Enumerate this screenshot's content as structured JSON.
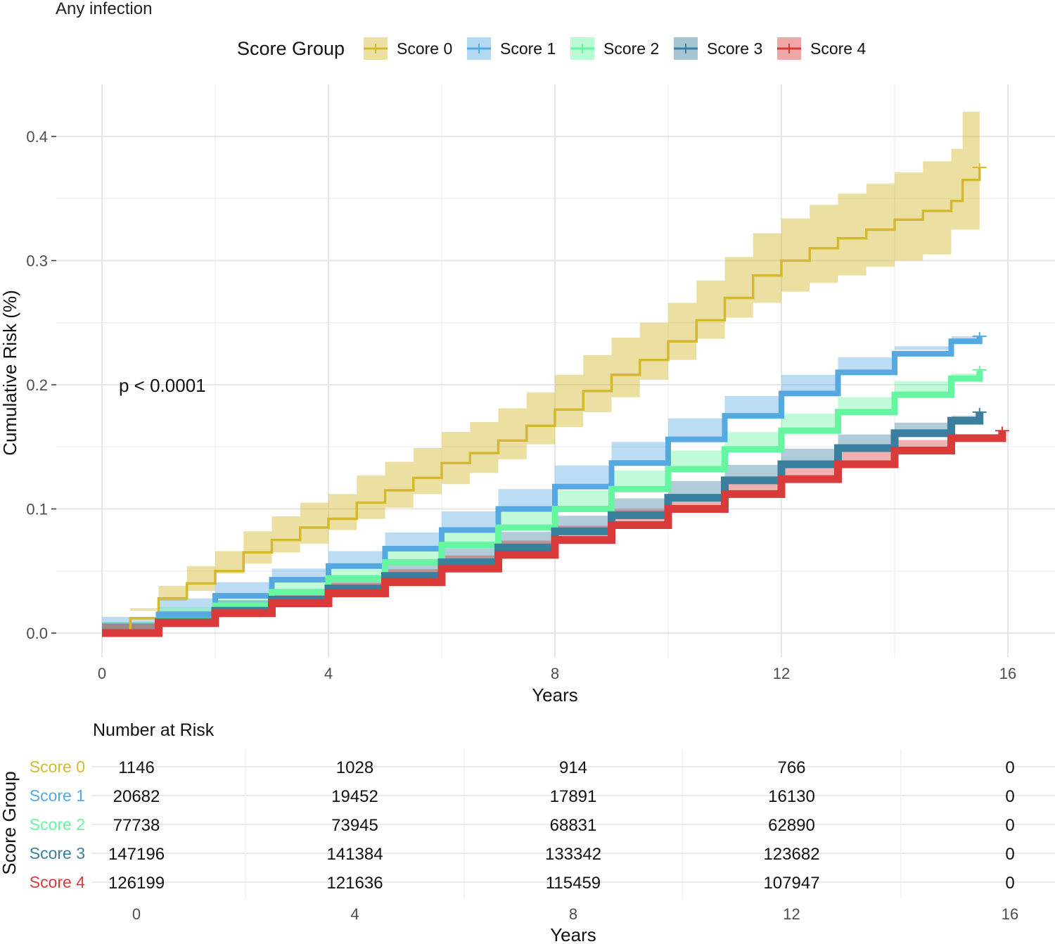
{
  "chart_data": [
    {
      "type": "line",
      "title": "Any infection",
      "xlabel": "Years",
      "ylabel": "Cumulative Risk (%)",
      "xlim": [
        0,
        16
      ],
      "ylim": [
        0,
        0.42
      ],
      "x_ticks": [
        0,
        4,
        8,
        12,
        16
      ],
      "y_ticks": [
        0.0,
        0.1,
        0.2,
        0.3,
        0.4
      ],
      "y_tick_labels": [
        "0.0",
        "0.1",
        "0.2",
        "0.3",
        "0.4"
      ],
      "grid": true,
      "annotation": "p < 0.0001",
      "legend": {
        "title": "Score Group",
        "position": "top",
        "entries": [
          "Score 0",
          "Score 1",
          "Score 2",
          "Score 3",
          "Score 4"
        ]
      },
      "series": [
        {
          "name": "Score 0",
          "color": "#D4B830",
          "x": [
            0,
            0.5,
            1,
            1.5,
            2,
            2.5,
            3,
            3.5,
            4,
            4.5,
            5,
            5.5,
            6,
            6.5,
            7,
            7.5,
            8,
            8.5,
            9,
            9.5,
            10,
            10.5,
            11,
            11.5,
            12,
            12.5,
            13,
            13.5,
            14,
            14.5,
            15,
            15.2,
            15.5
          ],
          "y": [
            0,
            0.012,
            0.028,
            0.04,
            0.05,
            0.065,
            0.075,
            0.085,
            0.092,
            0.105,
            0.115,
            0.125,
            0.137,
            0.145,
            0.155,
            0.167,
            0.18,
            0.195,
            0.208,
            0.22,
            0.235,
            0.252,
            0.27,
            0.288,
            0.3,
            0.31,
            0.318,
            0.325,
            0.333,
            0.34,
            0.348,
            0.365,
            0.375
          ],
          "ci_lower": [
            0,
            0.004,
            0.018,
            0.026,
            0.034,
            0.048,
            0.056,
            0.065,
            0.072,
            0.083,
            0.092,
            0.101,
            0.112,
            0.12,
            0.129,
            0.14,
            0.152,
            0.166,
            0.178,
            0.19,
            0.204,
            0.22,
            0.237,
            0.254,
            0.266,
            0.275,
            0.282,
            0.288,
            0.295,
            0.3,
            0.305,
            0.325,
            0.325
          ],
          "ci_upper": [
            0,
            0.02,
            0.038,
            0.054,
            0.066,
            0.082,
            0.094,
            0.105,
            0.112,
            0.127,
            0.138,
            0.149,
            0.162,
            0.17,
            0.181,
            0.194,
            0.208,
            0.224,
            0.238,
            0.25,
            0.266,
            0.284,
            0.303,
            0.322,
            0.334,
            0.345,
            0.354,
            0.362,
            0.371,
            0.38,
            0.39,
            0.42,
            0.42
          ]
        },
        {
          "name": "Score 1",
          "color": "#56A8E0",
          "x": [
            0,
            1,
            2,
            3,
            4,
            5,
            6,
            7,
            8,
            9,
            10,
            11,
            12,
            13,
            14,
            15,
            15.5
          ],
          "y": [
            0,
            0.015,
            0.03,
            0.043,
            0.054,
            0.068,
            0.083,
            0.1,
            0.118,
            0.137,
            0.156,
            0.175,
            0.193,
            0.21,
            0.225,
            0.235,
            0.239
          ],
          "ci_lower": [
            0,
            0.013,
            0.028,
            0.041,
            0.052,
            0.066,
            0.081,
            0.098,
            0.116,
            0.135,
            0.154,
            0.173,
            0.191,
            0.208,
            0.222,
            0.231,
            0.233
          ],
          "ci_upper": [
            0,
            0.017,
            0.032,
            0.045,
            0.056,
            0.07,
            0.085,
            0.102,
            0.12,
            0.139,
            0.158,
            0.177,
            0.195,
            0.212,
            0.228,
            0.239,
            0.245
          ]
        },
        {
          "name": "Score 2",
          "color": "#66F5A0",
          "x": [
            0,
            1,
            2,
            3,
            4,
            5,
            6,
            7,
            8,
            9,
            10,
            11,
            12,
            13,
            14,
            15,
            15.5
          ],
          "y": [
            0,
            0.01,
            0.022,
            0.033,
            0.044,
            0.057,
            0.071,
            0.085,
            0.1,
            0.116,
            0.132,
            0.148,
            0.163,
            0.178,
            0.192,
            0.205,
            0.212
          ],
          "ci_lower": [
            0,
            0.009,
            0.021,
            0.032,
            0.043,
            0.056,
            0.07,
            0.084,
            0.099,
            0.115,
            0.131,
            0.147,
            0.162,
            0.177,
            0.19,
            0.203,
            0.209
          ],
          "ci_upper": [
            0,
            0.011,
            0.023,
            0.034,
            0.045,
            0.058,
            0.072,
            0.086,
            0.101,
            0.117,
            0.133,
            0.149,
            0.164,
            0.179,
            0.194,
            0.207,
            0.215
          ]
        },
        {
          "name": "Score 3",
          "color": "#3A7F9E",
          "x": [
            0,
            1,
            2,
            3,
            4,
            5,
            6,
            7,
            8,
            9,
            10,
            11,
            12,
            13,
            14,
            15,
            15.5
          ],
          "y": [
            0,
            0.009,
            0.018,
            0.027,
            0.036,
            0.046,
            0.057,
            0.069,
            0.082,
            0.095,
            0.109,
            0.123,
            0.136,
            0.149,
            0.161,
            0.171,
            0.178
          ],
          "ci_lower": [
            0,
            0.0085,
            0.0175,
            0.0265,
            0.0355,
            0.0455,
            0.0565,
            0.0685,
            0.0815,
            0.0945,
            0.1085,
            0.1225,
            0.1355,
            0.1485,
            0.16,
            0.1695,
            0.175
          ],
          "ci_upper": [
            0,
            0.0095,
            0.0185,
            0.0275,
            0.0365,
            0.0465,
            0.0575,
            0.0695,
            0.0825,
            0.0955,
            0.1095,
            0.1235,
            0.1365,
            0.1495,
            0.162,
            0.1725,
            0.181
          ]
        },
        {
          "name": "Score 4",
          "color": "#D93A3A",
          "x": [
            0,
            1,
            2,
            3,
            4,
            5,
            6,
            7,
            8,
            9,
            10,
            11,
            12,
            13,
            14,
            15,
            15.9
          ],
          "y": [
            0,
            0.008,
            0.016,
            0.024,
            0.032,
            0.041,
            0.052,
            0.063,
            0.075,
            0.087,
            0.1,
            0.112,
            0.124,
            0.136,
            0.147,
            0.157,
            0.163
          ],
          "ci_lower": [
            0,
            0.0075,
            0.0155,
            0.0235,
            0.0315,
            0.0405,
            0.0515,
            0.0625,
            0.0745,
            0.0865,
            0.0995,
            0.1115,
            0.1235,
            0.1355,
            0.1462,
            0.1555,
            0.158
          ],
          "ci_upper": [
            0,
            0.0085,
            0.0165,
            0.0245,
            0.0325,
            0.0415,
            0.0525,
            0.0635,
            0.0755,
            0.0875,
            0.1005,
            0.1125,
            0.1245,
            0.1365,
            0.1478,
            0.1585,
            0.168
          ]
        }
      ]
    },
    {
      "type": "table",
      "title": "Number at Risk",
      "xlabel": "Years",
      "ylabel": "Score Group",
      "xlim": [
        0,
        16
      ],
      "x": [
        0,
        4,
        8,
        12,
        16
      ],
      "rows": [
        {
          "name": "Score 0",
          "color": "#D4B830",
          "values": [
            1146,
            1028,
            914,
            766,
            0
          ]
        },
        {
          "name": "Score 1",
          "color": "#56A8E0",
          "values": [
            20682,
            19452,
            17891,
            16130,
            0
          ]
        },
        {
          "name": "Score 2",
          "color": "#66F5A0",
          "values": [
            77738,
            73945,
            68831,
            62890,
            0
          ]
        },
        {
          "name": "Score 3",
          "color": "#3A7F9E",
          "values": [
            147196,
            141384,
            133342,
            123682,
            0
          ]
        },
        {
          "name": "Score 4",
          "color": "#D93A3A",
          "values": [
            126199,
            121636,
            115459,
            107947,
            0
          ]
        }
      ]
    }
  ]
}
